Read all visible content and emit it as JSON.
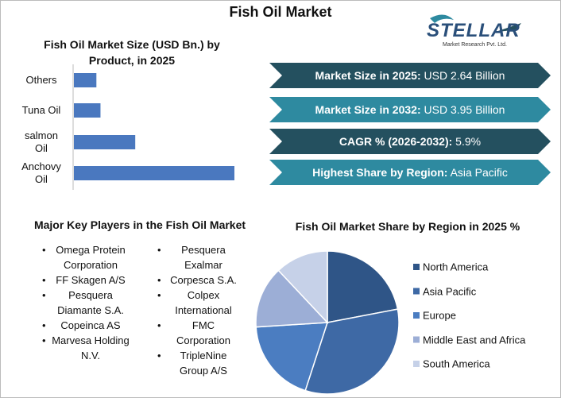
{
  "title": "Fish Oil Market",
  "logo": {
    "name": "STELLAR",
    "subtitle": "Market Research Pvt. Ltd."
  },
  "chart_data": [
    {
      "type": "bar",
      "title": "Fish Oil Market Size (USD Bn.) by Product, in 2025",
      "categories": [
        "Others",
        "Tuna Oil",
        "salmon Oil",
        "Anchovy Oil"
      ],
      "values": [
        0.22,
        0.26,
        0.6,
        1.57
      ],
      "color": "#4a78bf",
      "orientation": "horizontal"
    },
    {
      "type": "pie",
      "title": "Fish Oil Market Share by Region in 2025 %",
      "categories": [
        "North America",
        "Asia Pacific",
        "Europe",
        "Middle East and Africa",
        "South America"
      ],
      "values": [
        22,
        33,
        19,
        14,
        12
      ],
      "colors": [
        "#2f5587",
        "#3e69a5",
        "#4b7dc1",
        "#9caed6",
        "#c6d1e8"
      ],
      "legend": "right"
    }
  ],
  "stats": [
    {
      "label": "Market Size in 2025:",
      "value": "USD 2.64 Billion",
      "color": "#24505f"
    },
    {
      "label": "Market Size in 2032:",
      "value": "USD 3.95 Billion",
      "color": "#2e8aa0"
    },
    {
      "label": "CAGR % (2026-2032):",
      "value": "5.9%",
      "color": "#24505f"
    },
    {
      "label": "Highest Share by Region:",
      "value": "Asia Pacific",
      "color": "#2e8aa0"
    }
  ],
  "key_players": {
    "title": "Major Key Players in the Fish Oil Market",
    "columns": [
      [
        "Omega Protein Corporation",
        "FF Skagen A/S",
        "Pesquera Diamante S.A.",
        "Copeinca AS",
        "Marvesa Holding N.V."
      ],
      [
        "Pesquera Exalmar",
        "Corpesca S.A.",
        "Colpex International",
        "FMC Corporation",
        "TripleNine Group A/S"
      ]
    ]
  }
}
